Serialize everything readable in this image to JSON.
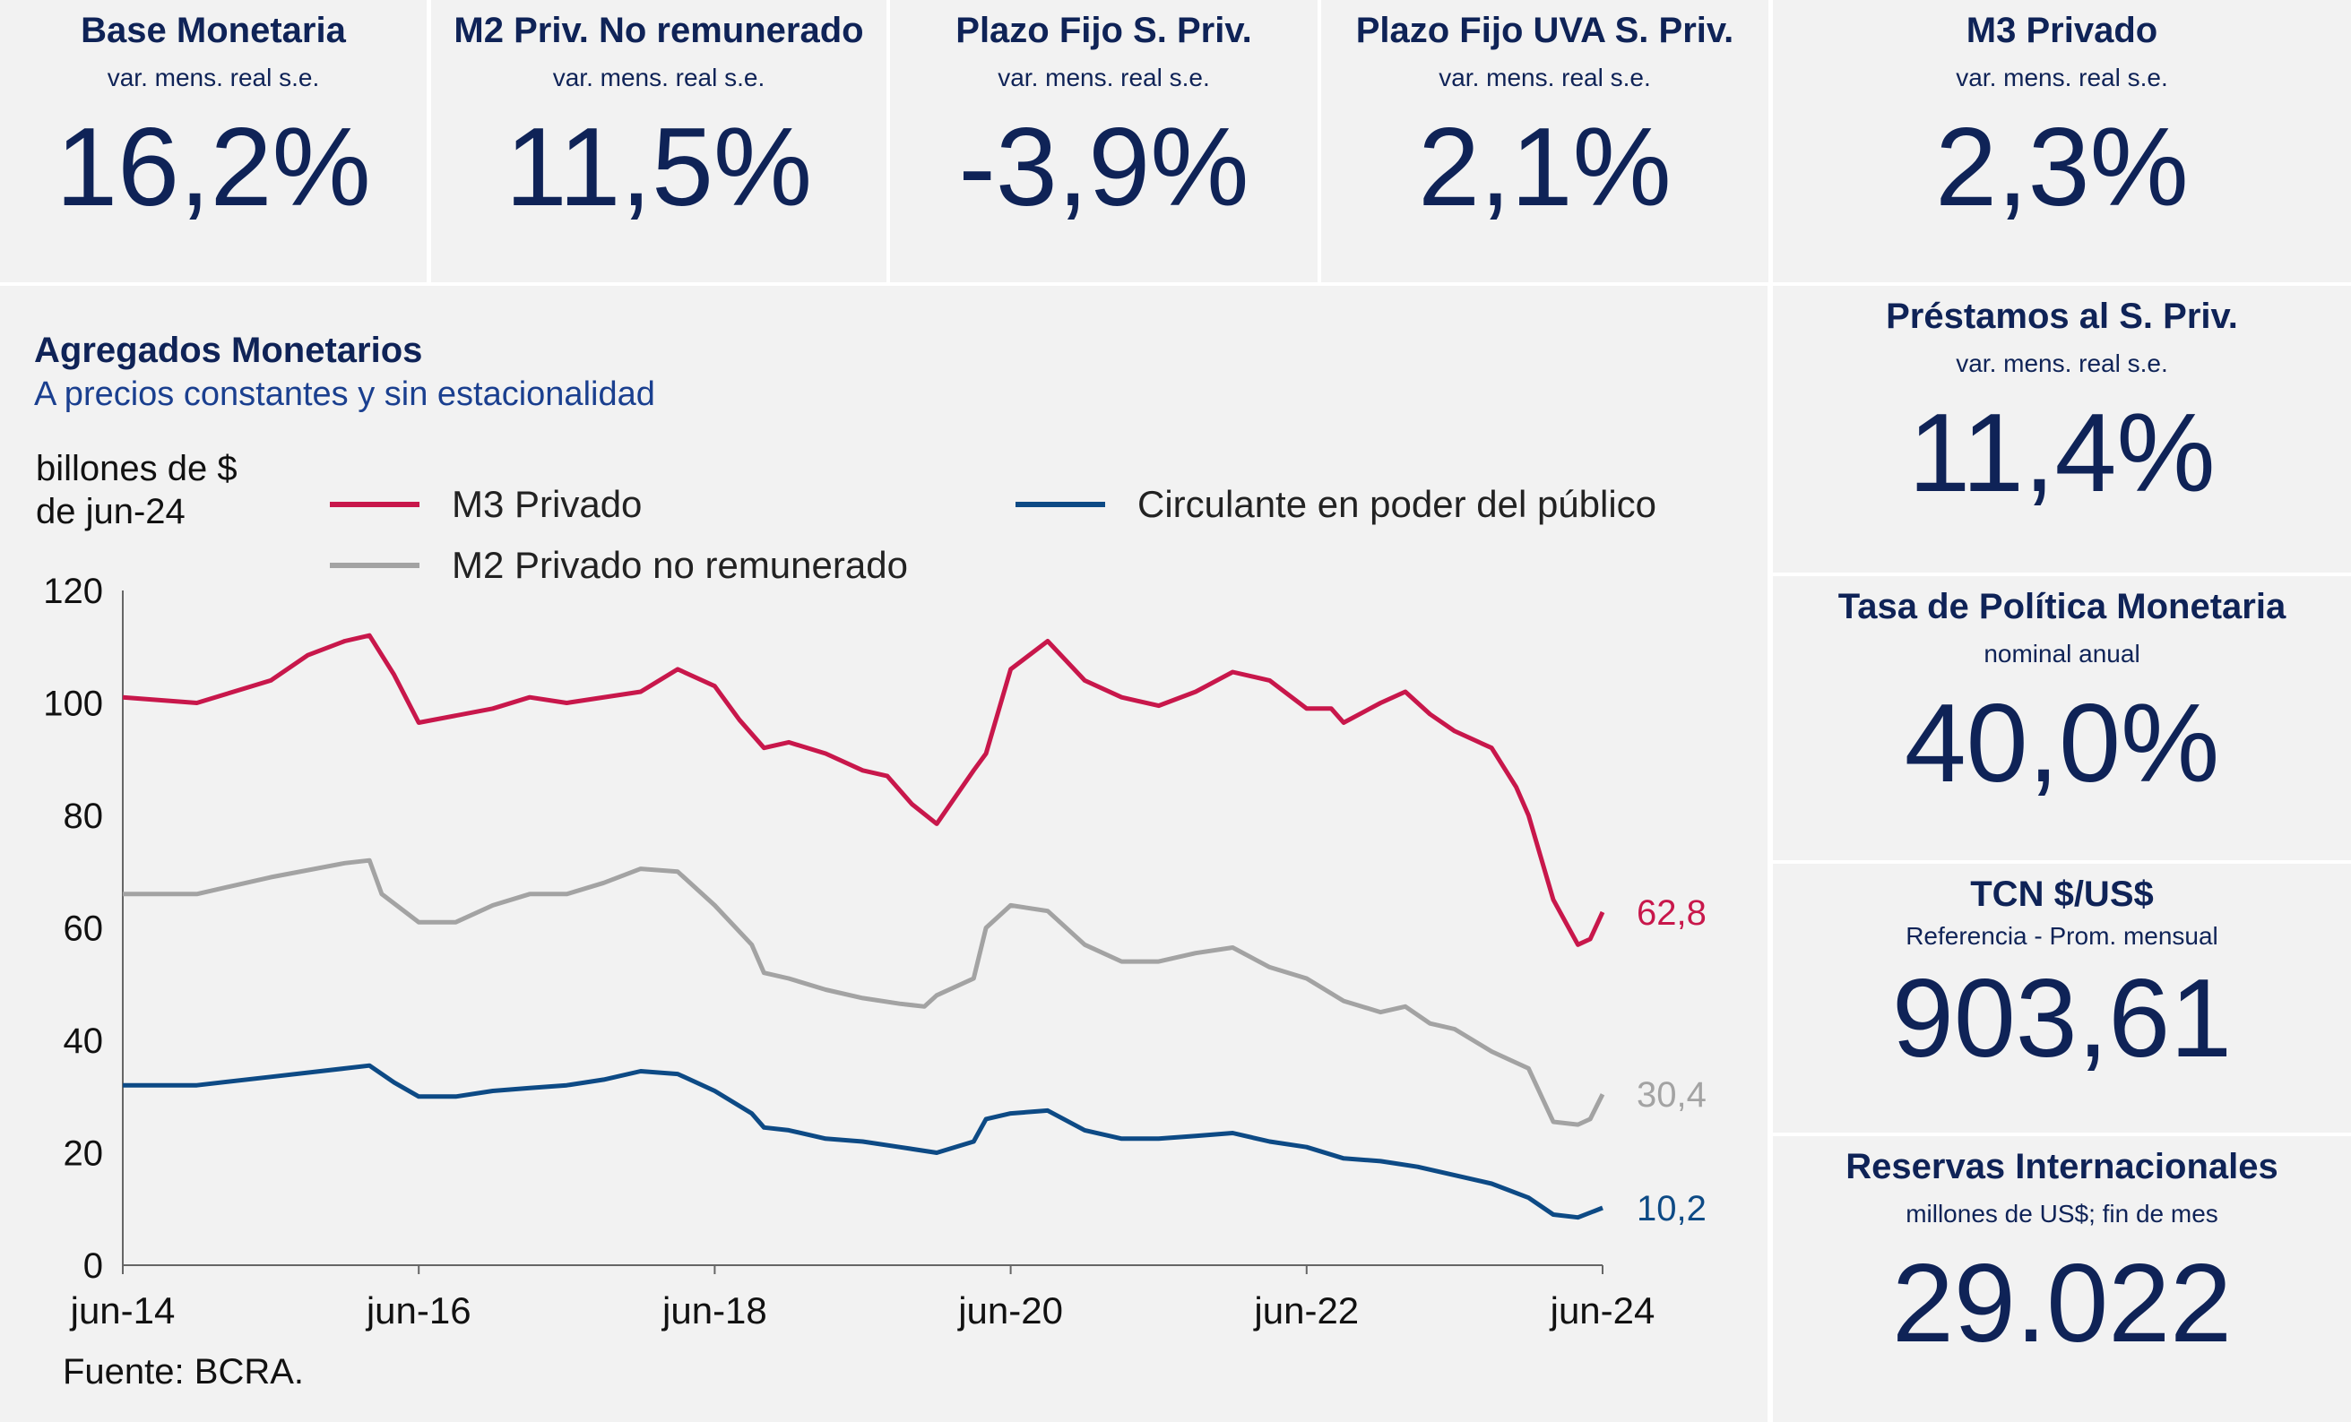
{
  "top_cards": [
    {
      "title": "Base Monetaria",
      "subtitle": "var. mens. real s.e.",
      "value": "16,2%"
    },
    {
      "title": "M2 Priv. No remunerado",
      "subtitle": "var. mens. real s.e.",
      "value": "11,5%"
    },
    {
      "title": "Plazo Fijo S. Priv.",
      "subtitle": "var. mens. real s.e.",
      "value": "-3,9%"
    },
    {
      "title": "Plazo Fijo UVA S. Priv.",
      "subtitle": "var. mens. real s.e.",
      "value": "2,1%"
    },
    {
      "title": "M3 Privado",
      "subtitle": "var. mens. real s.e.",
      "value": "2,3%"
    }
  ],
  "side_cards": [
    {
      "title": "Préstamos al S. Priv.",
      "subtitle": "var. mens. real s.e.",
      "value": "11,4%"
    },
    {
      "title": "Tasa de Política Monetaria",
      "subtitle": "nominal anual",
      "value": "40,0%"
    },
    {
      "title": "TCN $/US$",
      "subtitle": "Referencia - Prom. mensual",
      "value": "903,61"
    },
    {
      "title": "Reservas Internacionales",
      "subtitle": "millones de US$; fin de mes",
      "value": "29.022"
    }
  ],
  "chart_data": {
    "type": "line",
    "title": "Agregados Monetarios",
    "subtitle": "A precios constantes y sin estacionalidad",
    "ylabel": "billones de $ de jun-24",
    "ylim": [
      0,
      120
    ],
    "yticks": [
      "0",
      "20",
      "40",
      "60",
      "80",
      "100",
      "120"
    ],
    "xticks": [
      "jun-14",
      "jun-16",
      "jun-18",
      "jun-20",
      "jun-22",
      "jun-24"
    ],
    "xrange": [
      "2014-06",
      "2024-06"
    ],
    "grid": false,
    "legend": "top",
    "source": "Fuente: BCRA.",
    "series": [
      {
        "name": "M3 Privado",
        "color": "#c8174b",
        "end_label": "62,8",
        "points": [
          [
            "2014-06",
            101
          ],
          [
            "2014-12",
            100
          ],
          [
            "2015-06",
            104
          ],
          [
            "2015-09",
            108.5
          ],
          [
            "2015-12",
            111
          ],
          [
            "2016-02",
            112
          ],
          [
            "2016-04",
            105
          ],
          [
            "2016-06",
            96.5
          ],
          [
            "2016-12",
            99
          ],
          [
            "2017-03",
            101
          ],
          [
            "2017-06",
            100
          ],
          [
            "2017-12",
            102
          ],
          [
            "2018-03",
            106
          ],
          [
            "2018-06",
            103
          ],
          [
            "2018-08",
            97
          ],
          [
            "2018-10",
            92
          ],
          [
            "2018-12",
            93
          ],
          [
            "2019-03",
            91
          ],
          [
            "2019-06",
            88
          ],
          [
            "2019-08",
            87
          ],
          [
            "2019-10",
            82
          ],
          [
            "2019-12",
            78.5
          ],
          [
            "2020-03",
            88
          ],
          [
            "2020-04",
            91
          ],
          [
            "2020-06",
            106
          ],
          [
            "2020-09",
            111
          ],
          [
            "2020-12",
            104
          ],
          [
            "2021-03",
            101
          ],
          [
            "2021-06",
            99.5
          ],
          [
            "2021-09",
            102
          ],
          [
            "2021-12",
            105.5
          ],
          [
            "2022-03",
            104
          ],
          [
            "2022-06",
            99
          ],
          [
            "2022-08",
            99
          ],
          [
            "2022-09",
            96.5
          ],
          [
            "2022-12",
            100
          ],
          [
            "2023-02",
            102
          ],
          [
            "2023-04",
            98
          ],
          [
            "2023-06",
            95
          ],
          [
            "2023-09",
            92
          ],
          [
            "2023-11",
            85
          ],
          [
            "2023-12",
            80
          ],
          [
            "2024-02",
            65
          ],
          [
            "2024-04",
            57
          ],
          [
            "2024-05",
            58
          ],
          [
            "2024-06",
            62.8
          ]
        ]
      },
      {
        "name": "M2 Privado no remunerado",
        "color": "#a3a3a3",
        "end_label": "30,4",
        "points": [
          [
            "2014-06",
            66
          ],
          [
            "2014-12",
            66
          ],
          [
            "2015-06",
            69
          ],
          [
            "2015-12",
            71.5
          ],
          [
            "2016-02",
            72
          ],
          [
            "2016-03",
            66
          ],
          [
            "2016-06",
            61
          ],
          [
            "2016-09",
            61
          ],
          [
            "2016-12",
            64
          ],
          [
            "2017-03",
            66
          ],
          [
            "2017-06",
            66
          ],
          [
            "2017-09",
            68
          ],
          [
            "2017-12",
            70.5
          ],
          [
            "2018-03",
            70
          ],
          [
            "2018-06",
            64
          ],
          [
            "2018-09",
            57
          ],
          [
            "2018-10",
            52
          ],
          [
            "2018-12",
            51
          ],
          [
            "2019-03",
            49
          ],
          [
            "2019-06",
            47.5
          ],
          [
            "2019-09",
            46.5
          ],
          [
            "2019-11",
            46
          ],
          [
            "2019-12",
            48
          ],
          [
            "2020-03",
            51
          ],
          [
            "2020-04",
            60
          ],
          [
            "2020-06",
            64
          ],
          [
            "2020-09",
            63
          ],
          [
            "2020-12",
            57
          ],
          [
            "2021-03",
            54
          ],
          [
            "2021-06",
            54
          ],
          [
            "2021-09",
            55.5
          ],
          [
            "2021-12",
            56.5
          ],
          [
            "2022-03",
            53
          ],
          [
            "2022-06",
            51
          ],
          [
            "2022-09",
            47
          ],
          [
            "2022-12",
            45
          ],
          [
            "2023-02",
            46
          ],
          [
            "2023-04",
            43
          ],
          [
            "2023-06",
            42
          ],
          [
            "2023-09",
            38
          ],
          [
            "2023-11",
            36
          ],
          [
            "2023-12",
            35
          ],
          [
            "2024-02",
            25.5
          ],
          [
            "2024-04",
            25
          ],
          [
            "2024-05",
            26
          ],
          [
            "2024-06",
            30.4
          ]
        ]
      },
      {
        "name": "Circulante en poder del público",
        "color": "#0d4a85",
        "end_label": "10,2",
        "points": [
          [
            "2014-06",
            32
          ],
          [
            "2014-12",
            32
          ],
          [
            "2015-06",
            33.5
          ],
          [
            "2015-12",
            35
          ],
          [
            "2016-02",
            35.5
          ],
          [
            "2016-04",
            32.5
          ],
          [
            "2016-06",
            30
          ],
          [
            "2016-09",
            30
          ],
          [
            "2016-12",
            31
          ],
          [
            "2017-03",
            31.5
          ],
          [
            "2017-06",
            32
          ],
          [
            "2017-09",
            33
          ],
          [
            "2017-12",
            34.5
          ],
          [
            "2018-03",
            34
          ],
          [
            "2018-06",
            31
          ],
          [
            "2018-09",
            27
          ],
          [
            "2018-10",
            24.5
          ],
          [
            "2018-12",
            24
          ],
          [
            "2019-03",
            22.5
          ],
          [
            "2019-06",
            22
          ],
          [
            "2019-09",
            21
          ],
          [
            "2019-12",
            20
          ],
          [
            "2020-03",
            22
          ],
          [
            "2020-04",
            26
          ],
          [
            "2020-06",
            27
          ],
          [
            "2020-09",
            27.5
          ],
          [
            "2020-12",
            24
          ],
          [
            "2021-03",
            22.5
          ],
          [
            "2021-06",
            22.5
          ],
          [
            "2021-09",
            23
          ],
          [
            "2021-12",
            23.5
          ],
          [
            "2022-03",
            22
          ],
          [
            "2022-06",
            21
          ],
          [
            "2022-09",
            19
          ],
          [
            "2022-12",
            18.5
          ],
          [
            "2023-03",
            17.5
          ],
          [
            "2023-06",
            16
          ],
          [
            "2023-09",
            14.5
          ],
          [
            "2023-12",
            12
          ],
          [
            "2024-02",
            9
          ],
          [
            "2024-04",
            8.5
          ],
          [
            "2024-06",
            10.2
          ]
        ]
      }
    ]
  }
}
